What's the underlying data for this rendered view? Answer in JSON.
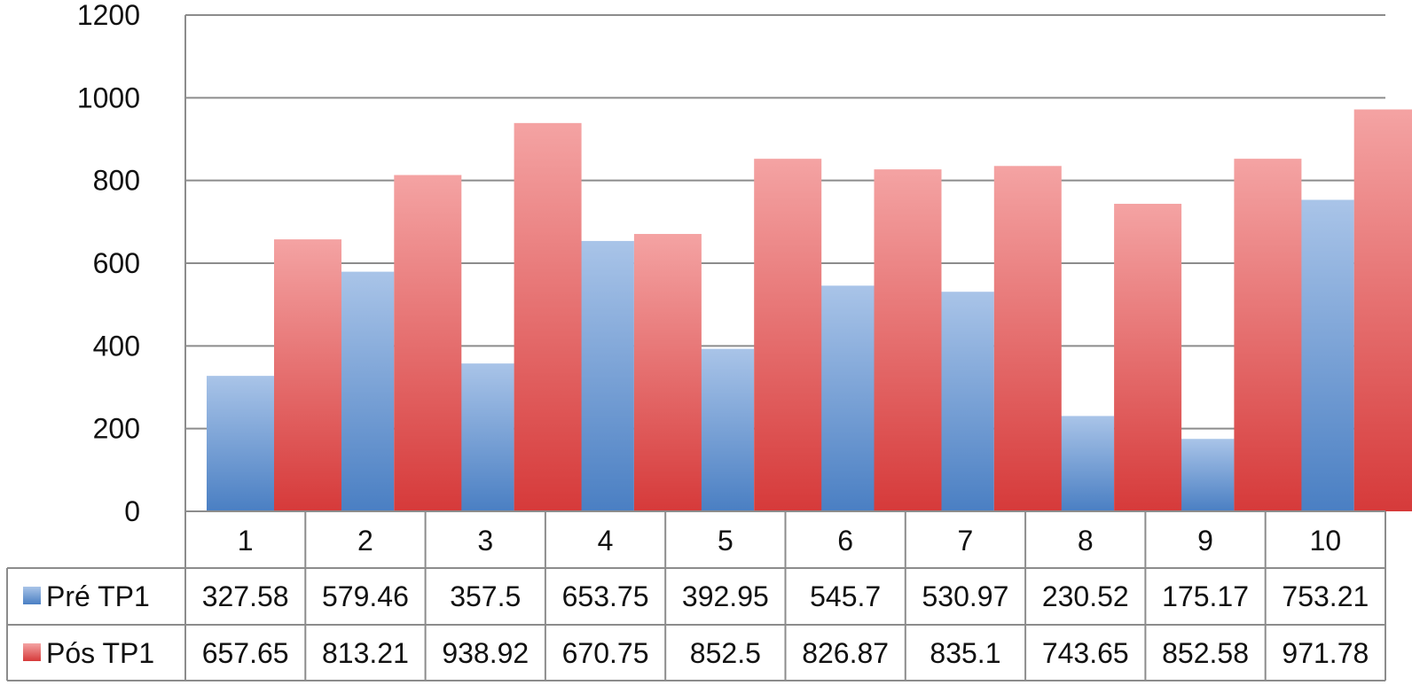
{
  "chart_data": {
    "type": "bar",
    "categories": [
      "1",
      "2",
      "3",
      "4",
      "5",
      "6",
      "7",
      "8",
      "9",
      "10"
    ],
    "series": [
      {
        "name": "Pré TP1",
        "color": "#4a7fc3",
        "color_light": "#a9c4e8",
        "values": [
          327.58,
          579.46,
          357.5,
          653.75,
          392.95,
          545.7,
          530.97,
          230.52,
          175.17,
          753.21
        ],
        "labels": [
          "327.58",
          "579.46",
          "357.5",
          "653.75",
          "392.95",
          "545.7",
          "530.97",
          "230.52",
          "175.17",
          "753.21"
        ]
      },
      {
        "name": "Pós TP1",
        "color": "#d63a3a",
        "color_light": "#f4a3a3",
        "values": [
          657.65,
          813.21,
          938.92,
          670.75,
          852.5,
          826.87,
          835.1,
          743.65,
          852.58,
          971.78
        ],
        "labels": [
          "657.65",
          "813.21",
          "938.92",
          "670.75",
          "852.5",
          "826.87",
          "835.1",
          "743.65",
          "852.58",
          "971.78"
        ]
      }
    ],
    "ylim": [
      0,
      1200
    ],
    "yticks": [
      "0",
      "200",
      "400",
      "600",
      "800",
      "1000",
      "1200"
    ],
    "grid": true,
    "legend_placement": "data-table"
  }
}
